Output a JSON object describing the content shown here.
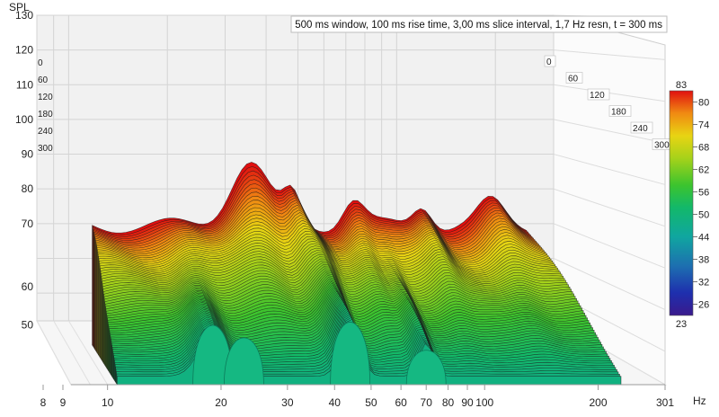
{
  "chart_data": {
    "type": "waterfall",
    "title": "500 ms window, 100 ms rise time, 3,00 ms slice interval, 1,7 Hz resn, t = 300 ms",
    "ylabel": "SPL",
    "xlabel_unit": "Hz",
    "y_ticks": [
      50,
      60,
      70,
      80,
      90,
      100,
      110,
      120,
      130
    ],
    "x_ticks": [
      {
        "value": 8,
        "label": "8"
      },
      {
        "value": 9,
        "label": "9"
      },
      {
        "value": 10,
        "label": "10"
      },
      {
        "value": 20,
        "label": "20"
      },
      {
        "value": 30,
        "label": "30"
      },
      {
        "value": 40,
        "label": "40"
      },
      {
        "value": 50,
        "label": "50"
      },
      {
        "value": 60,
        "label": "60"
      },
      {
        "value": 70,
        "label": "70"
      },
      {
        "value": 80,
        "label": "80"
      },
      {
        "value": 90,
        "label": "90"
      },
      {
        "value": 100,
        "label": "100"
      },
      {
        "value": 200,
        "label": "200"
      },
      {
        "value": 301,
        "label": "301"
      }
    ],
    "x_range": [
      8,
      301
    ],
    "x_scale": "log",
    "y_range": [
      42,
      130
    ],
    "depth_axis_label_values": [
      "0",
      "60",
      "120",
      "180",
      "240",
      "300"
    ],
    "colorbar": {
      "min": 23,
      "max": 83,
      "ticks": [
        80,
        74,
        68,
        62,
        56,
        50,
        44,
        38,
        32,
        26
      ],
      "max_label": "83",
      "min_label": "23"
    },
    "front_slice_peaks": [
      {
        "freq": 19,
        "spl": 61
      },
      {
        "freq": 23,
        "spl": 57
      },
      {
        "freq": 44,
        "spl": 62
      },
      {
        "freq": 70,
        "spl": 53
      }
    ],
    "rear_slice_peak": {
      "freq": 30,
      "spl": 91
    }
  }
}
